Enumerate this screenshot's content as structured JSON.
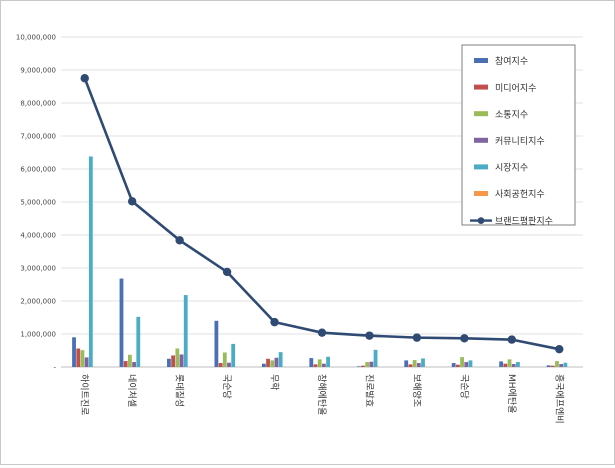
{
  "chart_data": {
    "type": "bar",
    "title": "",
    "xlabel": "",
    "ylabel": "",
    "ylim": [
      0,
      10000000
    ],
    "yticks": [
      0,
      1000000,
      2000000,
      3000000,
      4000000,
      5000000,
      6000000,
      7000000,
      8000000,
      9000000,
      10000000
    ],
    "ytick_labels": [
      "-",
      "1,000,000",
      "2,000,000",
      "3,000,000",
      "4,000,000",
      "5,000,000",
      "6,000,000",
      "7,000,000",
      "8,000,000",
      "9,000,000",
      "10,000,000"
    ],
    "grid": true,
    "legend_position": "top-right",
    "categories": [
      "하이트진로",
      "네이처셀",
      "롯데칠성",
      "국순당",
      "무학",
      "창해에탄올",
      "진로발효",
      "보해양조",
      "국순당",
      "MH에탄올",
      "흥국에프엔비"
    ],
    "series": [
      {
        "name": "참여지수",
        "type": "bar",
        "color": "#4a6fb5",
        "values": [
          900000,
          2680000,
          250000,
          1400000,
          100000,
          270000,
          20000,
          200000,
          120000,
          170000,
          50000
        ]
      },
      {
        "name": "미디어지수",
        "type": "bar",
        "color": "#c0504d",
        "values": [
          560000,
          180000,
          350000,
          120000,
          250000,
          80000,
          40000,
          80000,
          70000,
          100000,
          40000
        ]
      },
      {
        "name": "소통지수",
        "type": "bar",
        "color": "#9bbb59",
        "values": [
          510000,
          370000,
          560000,
          440000,
          200000,
          230000,
          150000,
          210000,
          300000,
          230000,
          180000
        ]
      },
      {
        "name": "커뮤니티지수",
        "type": "bar",
        "color": "#8064a2",
        "values": [
          290000,
          150000,
          380000,
          130000,
          280000,
          100000,
          160000,
          120000,
          150000,
          90000,
          90000
        ]
      },
      {
        "name": "시장지수",
        "type": "bar",
        "color": "#4bacc6",
        "values": [
          6380000,
          1520000,
          2180000,
          700000,
          450000,
          310000,
          520000,
          260000,
          200000,
          150000,
          130000
        ]
      },
      {
        "name": "사회공헌지수",
        "type": "bar",
        "color": "#f79646",
        "values": [
          0,
          0,
          0,
          0,
          0,
          0,
          0,
          0,
          0,
          0,
          0
        ]
      },
      {
        "name": "브랜드평판지수",
        "type": "line",
        "color": "#2f4a73",
        "values": [
          8750000,
          5020000,
          3840000,
          2880000,
          1360000,
          1040000,
          950000,
          890000,
          870000,
          830000,
          540000
        ]
      }
    ]
  }
}
